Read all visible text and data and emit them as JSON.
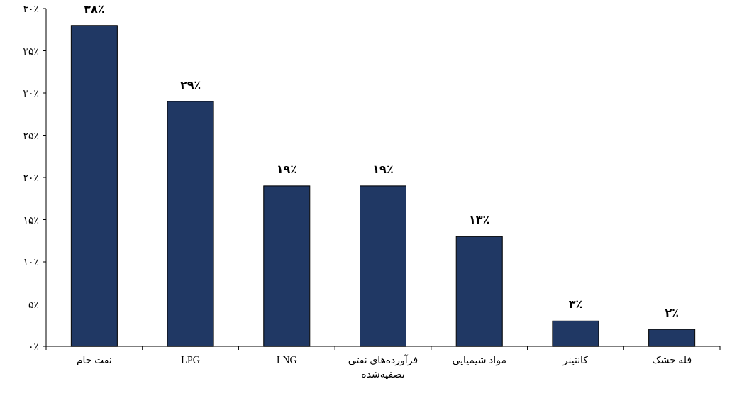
{
  "chart_data": {
    "type": "bar",
    "categories": [
      "نفت خام",
      "LPG",
      "LNG",
      "فرآورده‌های نفتی تصفیه‌شده",
      "مواد شیمیایی",
      "کانتینر",
      "فله خشک"
    ],
    "values": [
      38,
      29,
      19,
      19,
      13,
      3,
      2
    ],
    "value_labels": [
      "۳۸٪",
      "۲۹٪",
      "۱۹٪",
      "۱۹٪",
      "۱۳٪",
      "۳٪",
      "۲٪"
    ],
    "color": "#203864",
    "ylim": [
      0,
      40
    ],
    "yticks": [
      {
        "value": 0,
        "label": "۰٪"
      },
      {
        "value": 5,
        "label": "۵٪"
      },
      {
        "value": 10,
        "label": "۱۰٪"
      },
      {
        "value": 15,
        "label": "۱۵٪"
      },
      {
        "value": 20,
        "label": "۲۰٪"
      },
      {
        "value": 25,
        "label": "۲۵٪"
      },
      {
        "value": 30,
        "label": "۳۰٪"
      },
      {
        "value": 35,
        "label": "۳۵٪"
      },
      {
        "value": 40,
        "label": "۴۰٪"
      }
    ]
  }
}
